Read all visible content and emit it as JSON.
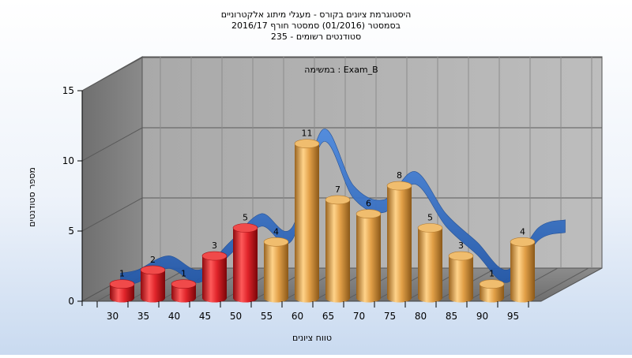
{
  "title": {
    "line1": "היסטוגרמת ציונים בקורס - מעגלי מיתוג אלקטרוניים",
    "line2": "בסמסטר  (01/2016)  סמסטר חורף 2016/17",
    "line3": "סטודנטים רשומים - 235"
  },
  "chart_data": {
    "type": "bar",
    "annotation": "במשימה : Exam_B",
    "categories": [
      "30",
      "35",
      "40",
      "45",
      "50",
      "55",
      "60",
      "65",
      "70",
      "75",
      "80",
      "85",
      "90",
      "95"
    ],
    "values": [
      1,
      2,
      1,
      3,
      5,
      4,
      11,
      7,
      6,
      8,
      5,
      3,
      1,
      4
    ],
    "bar_colors": [
      "#e0242a",
      "#e0242a",
      "#e0242a",
      "#e0242a",
      "#e0242a",
      "#e2a048",
      "#e2a048",
      "#e2a048",
      "#e2a048",
      "#e2a048",
      "#e2a048",
      "#e2a048",
      "#e2a048",
      "#e2a048"
    ],
    "ylim": [
      0,
      15
    ],
    "yticks": [
      "0",
      "5",
      "10",
      "15"
    ],
    "xlabel": "טווח ציונים",
    "ylabel": "מספר סטודנטים",
    "grid": true,
    "trend_color": "#2f6cc4"
  }
}
